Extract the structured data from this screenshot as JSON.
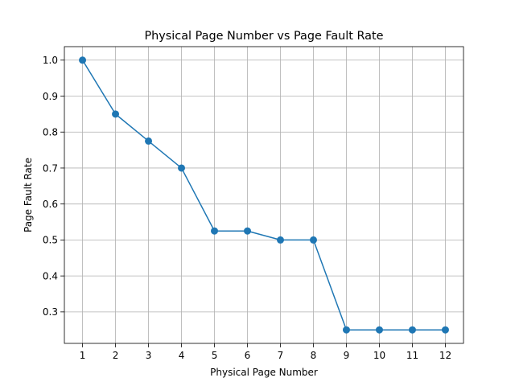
{
  "chart_data": {
    "type": "line",
    "title": "Physical Page Number vs Page Fault Rate",
    "xlabel": "Physical Page Number",
    "ylabel": "Page Fault Rate",
    "x": [
      1,
      2,
      3,
      4,
      5,
      6,
      7,
      8,
      9,
      10,
      11,
      12
    ],
    "series": [
      {
        "values": [
          1.0,
          0.85,
          0.775,
          0.7,
          0.525,
          0.525,
          0.5,
          0.5,
          0.25,
          0.25,
          0.25,
          0.25
        ],
        "color": "#1f77b4",
        "marker": "circle"
      }
    ],
    "xlim": [
      0.45,
      12.55
    ],
    "ylim": [
      0.2125,
      1.0375
    ],
    "xticks": [
      "1",
      "2",
      "3",
      "4",
      "5",
      "6",
      "7",
      "8",
      "9",
      "10",
      "11",
      "12"
    ],
    "yticks": [
      "0.3",
      "0.4",
      "0.5",
      "0.6",
      "0.7",
      "0.8",
      "0.9",
      "1.0"
    ],
    "grid": true,
    "colors": {
      "line": "#1f77b4",
      "grid": "#b0b0b0",
      "axes": "#000000"
    }
  }
}
